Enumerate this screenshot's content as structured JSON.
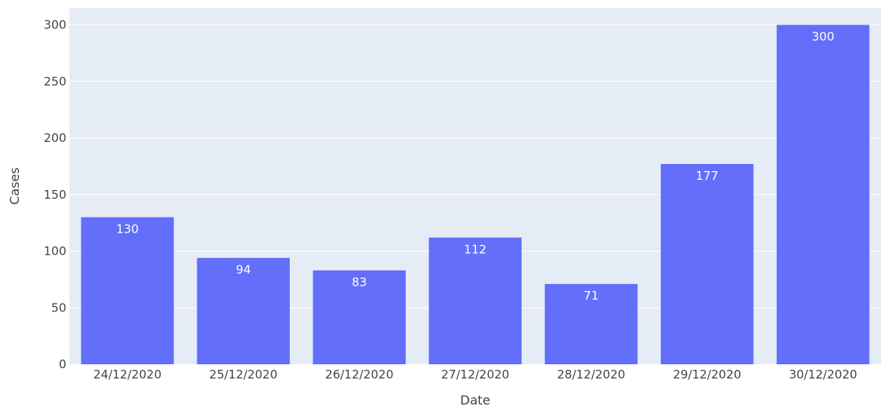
{
  "chart_data": {
    "type": "bar",
    "categories": [
      "24/12/2020",
      "25/12/2020",
      "26/12/2020",
      "27/12/2020",
      "28/12/2020",
      "29/12/2020",
      "30/12/2020"
    ],
    "values": [
      130,
      94,
      83,
      112,
      71,
      177,
      300
    ],
    "xlabel": "Date",
    "ylabel": "Cases",
    "ylim": [
      0,
      315
    ],
    "yticks": [
      0,
      50,
      100,
      150,
      200,
      250,
      300
    ],
    "grid": true,
    "bar_color": "#636efa",
    "plot_background": "#e5ecf6",
    "data_labels": "inside-end"
  }
}
